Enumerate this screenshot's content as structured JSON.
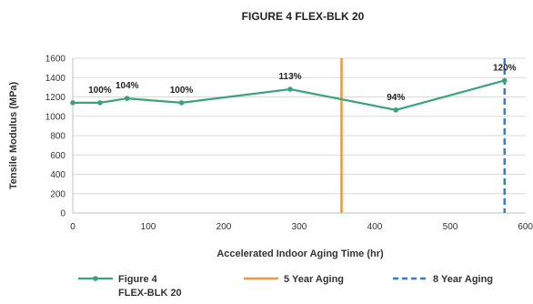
{
  "chart_data": {
    "type": "line",
    "title": "FIGURE 4 FLEX-BLK 20",
    "xlabel": "Accelerated Indoor Aging Time (hr)",
    "ylabel": "Tensile Modulus (MPa)",
    "xlim": [
      0,
      600
    ],
    "ylim": [
      0,
      1600
    ],
    "x_ticks": [
      "0",
      "100",
      "200",
      "300",
      "400",
      "500",
      "600"
    ],
    "x_tick_values": [
      0,
      100,
      200,
      300,
      400,
      500,
      600
    ],
    "y_ticks": [
      "0",
      "200",
      "400",
      "600",
      "800",
      "1000",
      "1200",
      "1400",
      "1600"
    ],
    "y_tick_values": [
      0,
      200,
      400,
      600,
      800,
      1000,
      1200,
      1400,
      1600
    ],
    "grid": true,
    "legend_position": "bottom",
    "series": [
      {
        "name": "Figure 4 FLEX-BLK 20",
        "legend_lines": [
          "Figure 4",
          "FLEX-BLK 20"
        ],
        "color": "#3aa37a",
        "x": [
          0,
          36,
          72,
          144,
          288,
          428,
          572
        ],
        "y": [
          1140,
          1140,
          1185,
          1140,
          1280,
          1065,
          1370
        ]
      }
    ],
    "annotations": [
      {
        "text": "100%",
        "x": 36,
        "y": 1140
      },
      {
        "text": "104%",
        "x": 72,
        "y": 1185
      },
      {
        "text": "100%",
        "x": 144,
        "y": 1140
      },
      {
        "text": "113%",
        "x": 288,
        "y": 1280
      },
      {
        "text": "94%",
        "x": 428,
        "y": 1065
      },
      {
        "text": "120%",
        "x": 572,
        "y": 1370
      }
    ],
    "reference_lines": [
      {
        "name": "5 Year Aging",
        "x": 356,
        "color": "#e89a3c",
        "style": "solid"
      },
      {
        "name": "8 Year Aging",
        "x": 572,
        "color": "#2e7fd0",
        "style": "dashed"
      }
    ]
  }
}
